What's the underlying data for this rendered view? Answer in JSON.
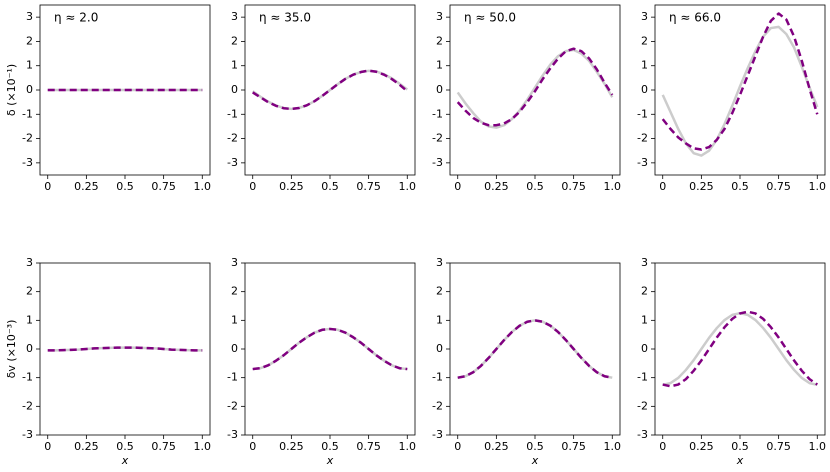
{
  "chart_data": [
    {
      "type": "line",
      "annotation": "η ≈ 2.0",
      "ylabel": "δ (×10⁻¹)",
      "x": [
        0,
        0.05,
        0.1,
        0.15,
        0.2,
        0.25,
        0.3,
        0.35,
        0.4,
        0.45,
        0.5,
        0.55,
        0.6,
        0.65,
        0.7,
        0.75,
        0.8,
        0.85,
        0.9,
        0.95,
        1
      ],
      "series": [
        {
          "color": "#cccccc",
          "linestyle": "solid",
          "values": [
            0,
            0,
            0,
            0,
            0,
            0,
            0,
            0,
            0,
            0,
            0,
            0,
            0,
            0,
            0,
            0,
            0,
            0,
            0,
            0,
            0
          ]
        },
        {
          "color": "#800080",
          "linestyle": "dashed",
          "values": [
            0,
            0,
            0,
            0,
            0,
            0,
            0,
            0,
            0,
            0,
            0,
            0,
            0,
            0,
            0,
            0,
            0,
            0,
            0,
            0,
            0
          ]
        }
      ],
      "xlim": [
        -0.05,
        1.05
      ],
      "ylim": [
        -3.5,
        3.5
      ],
      "xticks": [
        0,
        0.25,
        0.5,
        0.75,
        {
          "value": 1,
          "label": "1.0"
        }
      ],
      "yticks": [
        -3,
        -2,
        -1,
        0,
        1,
        2,
        3
      ]
    },
    {
      "type": "line",
      "annotation": "η ≈ 35.0",
      "x": [
        0,
        0.05,
        0.1,
        0.15,
        0.2,
        0.25,
        0.3,
        0.35,
        0.4,
        0.45,
        0.5,
        0.55,
        0.6,
        0.65,
        0.7,
        0.75,
        0.8,
        0.85,
        0.9,
        0.95,
        1
      ],
      "series": [
        {
          "color": "#cccccc",
          "linestyle": "solid",
          "values": [
            -0.05,
            -0.28,
            -0.48,
            -0.64,
            -0.74,
            -0.78,
            -0.74,
            -0.63,
            -0.46,
            -0.24,
            0,
            0.24,
            0.46,
            0.63,
            0.74,
            0.79,
            0.76,
            0.65,
            0.48,
            0.26,
            0.02
          ]
        },
        {
          "color": "#800080",
          "linestyle": "dashed",
          "values": [
            -0.1,
            -0.3,
            -0.5,
            -0.65,
            -0.75,
            -0.78,
            -0.74,
            -0.63,
            -0.46,
            -0.24,
            0,
            0.24,
            0.46,
            0.63,
            0.74,
            0.8,
            0.75,
            0.63,
            0.45,
            0.22,
            -0.05
          ]
        }
      ],
      "xlim": [
        -0.05,
        1.05
      ],
      "ylim": [
        -3.5,
        3.5
      ],
      "xticks": [
        0,
        0.25,
        0.5,
        0.75,
        {
          "value": 1,
          "label": "1.0"
        }
      ],
      "yticks": [
        -3,
        -2,
        -1,
        0,
        1,
        2,
        3
      ]
    },
    {
      "type": "line",
      "annotation": "η ≈ 50.0",
      "x": [
        0,
        0.05,
        0.1,
        0.15,
        0.2,
        0.25,
        0.3,
        0.35,
        0.4,
        0.45,
        0.5,
        0.55,
        0.6,
        0.65,
        0.7,
        0.75,
        0.8,
        0.85,
        0.9,
        0.95,
        1
      ],
      "series": [
        {
          "color": "#cccccc",
          "linestyle": "solid",
          "values": [
            -0.1,
            -0.55,
            -0.95,
            -1.3,
            -1.5,
            -1.55,
            -1.45,
            -1.2,
            -0.85,
            -0.4,
            0.1,
            0.6,
            1.05,
            1.4,
            1.6,
            1.65,
            1.5,
            1.2,
            0.75,
            0.25,
            -0.3
          ]
        },
        {
          "color": "#800080",
          "linestyle": "dashed",
          "values": [
            -0.5,
            -0.85,
            -1.15,
            -1.35,
            -1.45,
            -1.45,
            -1.38,
            -1.2,
            -0.9,
            -0.5,
            -0.05,
            0.45,
            0.9,
            1.3,
            1.6,
            1.7,
            1.6,
            1.3,
            0.85,
            0.3,
            -0.2
          ]
        }
      ],
      "xlim": [
        -0.05,
        1.05
      ],
      "ylim": [
        -3.5,
        3.5
      ],
      "xticks": [
        0,
        0.25,
        0.5,
        0.75,
        {
          "value": 1,
          "label": "1.0"
        }
      ],
      "yticks": [
        -3,
        -2,
        -1,
        0,
        1,
        2,
        3
      ]
    },
    {
      "type": "line",
      "annotation": "η ≈ 66.0",
      "x": [
        0,
        0.05,
        0.1,
        0.15,
        0.2,
        0.25,
        0.3,
        0.35,
        0.4,
        0.45,
        0.5,
        0.55,
        0.6,
        0.65,
        0.7,
        0.75,
        0.8,
        0.85,
        0.9,
        0.95,
        1
      ],
      "series": [
        {
          "color": "#cccccc",
          "linestyle": "solid",
          "values": [
            -0.2,
            -0.9,
            -1.6,
            -2.2,
            -2.6,
            -2.7,
            -2.5,
            -2.05,
            -1.4,
            -0.65,
            0.15,
            0.9,
            1.6,
            2.2,
            2.55,
            2.6,
            2.3,
            1.75,
            0.95,
            0.1,
            -0.7
          ]
        },
        {
          "color": "#800080",
          "linestyle": "dashed",
          "values": [
            -1.2,
            -1.6,
            -1.95,
            -2.2,
            -2.4,
            -2.45,
            -2.35,
            -2.05,
            -1.6,
            -0.95,
            -0.2,
            0.6,
            1.4,
            2.2,
            2.85,
            3.15,
            2.9,
            2.2,
            1.2,
            0.05,
            -1.0
          ]
        }
      ],
      "xlim": [
        -0.05,
        1.05
      ],
      "ylim": [
        -3.5,
        3.5
      ],
      "xticks": [
        0,
        0.25,
        0.5,
        0.75,
        {
          "value": 1,
          "label": "1.0"
        }
      ],
      "yticks": [
        -3,
        -2,
        -1,
        0,
        1,
        2,
        3
      ]
    },
    {
      "type": "line",
      "ylabel": "δv (×10⁻³)",
      "xlabel": "x",
      "x": [
        0,
        0.05,
        0.1,
        0.15,
        0.2,
        0.25,
        0.3,
        0.35,
        0.4,
        0.45,
        0.5,
        0.55,
        0.6,
        0.65,
        0.7,
        0.75,
        0.8,
        0.85,
        0.9,
        0.95,
        1
      ],
      "series": [
        {
          "color": "#cccccc",
          "linestyle": "solid",
          "values": [
            -0.05,
            -0.05,
            -0.04,
            -0.03,
            -0.02,
            0,
            0.02,
            0.03,
            0.04,
            0.05,
            0.05,
            0.05,
            0.04,
            0.03,
            0.02,
            0,
            -0.02,
            -0.03,
            -0.04,
            -0.05,
            -0.05
          ]
        },
        {
          "color": "#800080",
          "linestyle": "dashed",
          "values": [
            -0.05,
            -0.05,
            -0.04,
            -0.03,
            -0.02,
            0,
            0.02,
            0.03,
            0.04,
            0.05,
            0.05,
            0.05,
            0.04,
            0.03,
            0.02,
            0,
            -0.02,
            -0.03,
            -0.04,
            -0.05,
            -0.05
          ]
        }
      ],
      "xlim": [
        -0.05,
        1.05
      ],
      "ylim": [
        -3,
        3
      ],
      "xticks": [
        0,
        0.25,
        0.5,
        0.75,
        {
          "value": 1,
          "label": "1.0"
        }
      ],
      "yticks": [
        -3,
        -2,
        -1,
        0,
        1,
        2,
        3
      ]
    },
    {
      "type": "line",
      "xlabel": "x",
      "x": [
        0,
        0.05,
        0.1,
        0.15,
        0.2,
        0.25,
        0.3,
        0.35,
        0.4,
        0.45,
        0.5,
        0.55,
        0.6,
        0.65,
        0.7,
        0.75,
        0.8,
        0.85,
        0.9,
        0.95,
        1
      ],
      "series": [
        {
          "color": "#cccccc",
          "linestyle": "solid",
          "values": [
            -0.7,
            -0.67,
            -0.57,
            -0.41,
            -0.22,
            0,
            0.22,
            0.41,
            0.57,
            0.67,
            0.7,
            0.67,
            0.57,
            0.41,
            0.22,
            0,
            -0.22,
            -0.41,
            -0.57,
            -0.67,
            -0.7
          ]
        },
        {
          "color": "#800080",
          "linestyle": "dashed",
          "values": [
            -0.7,
            -0.67,
            -0.57,
            -0.41,
            -0.22,
            0,
            0.22,
            0.41,
            0.57,
            0.67,
            0.7,
            0.67,
            0.57,
            0.41,
            0.22,
            0,
            -0.22,
            -0.41,
            -0.57,
            -0.67,
            -0.7
          ]
        }
      ],
      "xlim": [
        -0.05,
        1.05
      ],
      "ylim": [
        -3,
        3
      ],
      "xticks": [
        0,
        0.25,
        0.5,
        0.75,
        {
          "value": 1,
          "label": "1.0"
        }
      ],
      "yticks": [
        -3,
        -2,
        -1,
        0,
        1,
        2,
        3
      ]
    },
    {
      "type": "line",
      "xlabel": "x",
      "x": [
        0,
        0.05,
        0.1,
        0.15,
        0.2,
        0.25,
        0.3,
        0.35,
        0.4,
        0.45,
        0.5,
        0.55,
        0.6,
        0.65,
        0.7,
        0.75,
        0.8,
        0.85,
        0.9,
        0.95,
        1
      ],
      "series": [
        {
          "color": "#cccccc",
          "linestyle": "solid",
          "values": [
            -1,
            -0.95,
            -0.81,
            -0.59,
            -0.31,
            0,
            0.31,
            0.59,
            0.81,
            0.95,
            1,
            0.95,
            0.81,
            0.59,
            0.31,
            0,
            -0.31,
            -0.59,
            -0.81,
            -0.95,
            -1
          ]
        },
        {
          "color": "#800080",
          "linestyle": "dashed",
          "values": [
            -1,
            -0.95,
            -0.81,
            -0.59,
            -0.31,
            0,
            0.31,
            0.59,
            0.81,
            0.95,
            1,
            0.95,
            0.81,
            0.59,
            0.31,
            0,
            -0.31,
            -0.59,
            -0.81,
            -0.95,
            -1
          ]
        }
      ],
      "xlim": [
        -0.05,
        1.05
      ],
      "ylim": [
        -3,
        3
      ],
      "xticks": [
        0,
        0.25,
        0.5,
        0.75,
        {
          "value": 1,
          "label": "1.0"
        }
      ],
      "yticks": [
        -3,
        -2,
        -1,
        0,
        1,
        2,
        3
      ]
    },
    {
      "type": "line",
      "xlabel": "x",
      "x": [
        0,
        0.05,
        0.1,
        0.15,
        0.2,
        0.25,
        0.3,
        0.35,
        0.4,
        0.45,
        0.5,
        0.55,
        0.6,
        0.65,
        0.7,
        0.75,
        0.8,
        0.85,
        0.9,
        0.95,
        1
      ],
      "series": [
        {
          "color": "#cccccc",
          "linestyle": "solid",
          "values": [
            -1.25,
            -1.19,
            -1.01,
            -0.73,
            -0.39,
            0,
            0.39,
            0.73,
            1.01,
            1.19,
            1.25,
            1.19,
            1.01,
            0.73,
            0.39,
            0,
            -0.39,
            -0.73,
            -1.01,
            -1.19,
            -1.25
          ]
        },
        {
          "color": "#800080",
          "linestyle": "dashed",
          "values": [
            -1.24,
            -1.3,
            -1.24,
            -1.05,
            -0.76,
            -0.4,
            0,
            0.4,
            0.76,
            1.05,
            1.24,
            1.3,
            1.24,
            1.05,
            0.76,
            0.4,
            0,
            -0.4,
            -0.76,
            -1.05,
            -1.24
          ]
        }
      ],
      "xlim": [
        -0.05,
        1.05
      ],
      "ylim": [
        -3,
        3
      ],
      "xticks": [
        0,
        0.25,
        0.5,
        0.75,
        {
          "value": 1,
          "label": "1.0"
        }
      ],
      "yticks": [
        -3,
        -2,
        -1,
        0,
        1,
        2,
        3
      ]
    }
  ]
}
